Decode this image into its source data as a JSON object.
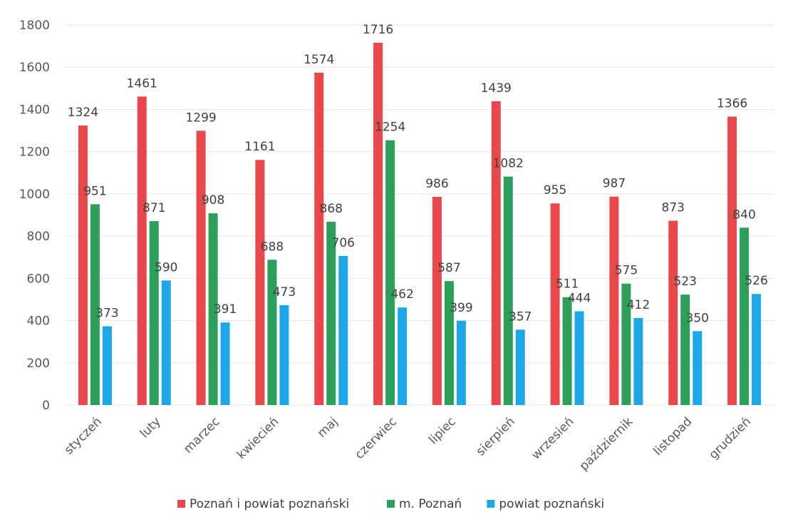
{
  "chart_data": {
    "type": "bar",
    "categories": [
      "styczeń",
      "luty",
      "marzec",
      "kwiecień",
      "maj",
      "czerwiec",
      "lipiec",
      "sierpień",
      "wrzesień",
      "październik",
      "listopad",
      "grudzień"
    ],
    "series": [
      {
        "name": "Poznań i powiat poznański",
        "color": "#e8474b",
        "values": [
          1324,
          1461,
          1299,
          1161,
          1574,
          1716,
          986,
          1439,
          955,
          987,
          873,
          1366
        ]
      },
      {
        "name": "m. Poznań",
        "color": "#2e9e5b",
        "values": [
          951,
          871,
          908,
          688,
          868,
          1254,
          587,
          1082,
          511,
          575,
          523,
          840
        ]
      },
      {
        "name": "powiat poznański",
        "color": "#1ea7e8",
        "values": [
          373,
          590,
          391,
          473,
          706,
          462,
          399,
          357,
          444,
          412,
          350,
          526
        ]
      }
    ],
    "ylim": [
      0,
      1800
    ],
    "yticks": [
      0,
      200,
      400,
      600,
      800,
      1000,
      1200,
      1400,
      1600,
      1800
    ],
    "grid": true,
    "legend_position": "bottom",
    "title": "",
    "xlabel": "",
    "ylabel": ""
  }
}
